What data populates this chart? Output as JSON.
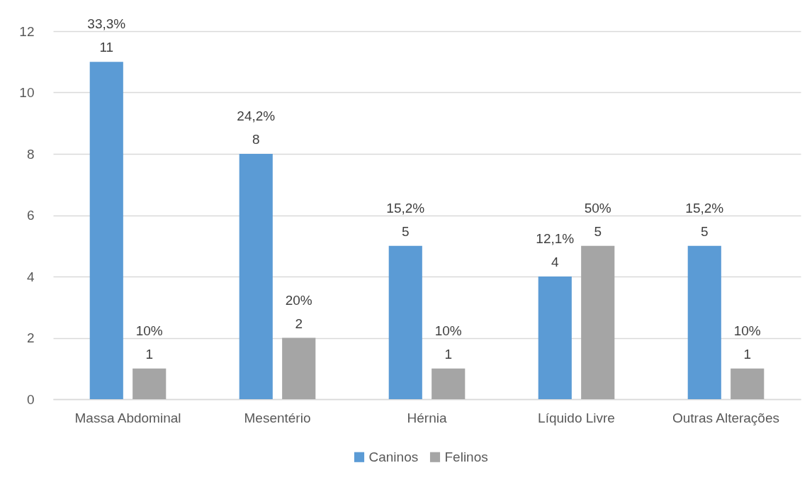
{
  "chart_data": {
    "type": "bar",
    "categories": [
      "Massa Abdominal",
      "Mesentério",
      "Hérnia",
      "Líquido Livre",
      "Outras Alterações"
    ],
    "series": [
      {
        "name": "Caninos",
        "color": "#5b9bd5",
        "values": [
          11,
          8,
          5,
          4,
          5
        ],
        "value_labels": [
          "33,3%\n11",
          "24,2%\n8",
          "15,2%\n5",
          "12,1%\n4",
          "15,2%\n5"
        ]
      },
      {
        "name": "Felinos",
        "color": "#a5a5a5",
        "values": [
          1,
          2,
          1,
          5,
          1
        ],
        "value_labels": [
          "10%\n1",
          "20%\n2",
          "10%\n1",
          "50%\n5",
          "10%\n1"
        ]
      }
    ],
    "ylim": [
      0,
      12
    ],
    "yticks": [
      0,
      2,
      4,
      6,
      8,
      10,
      12
    ],
    "grid": "y",
    "legend": "bottom"
  }
}
